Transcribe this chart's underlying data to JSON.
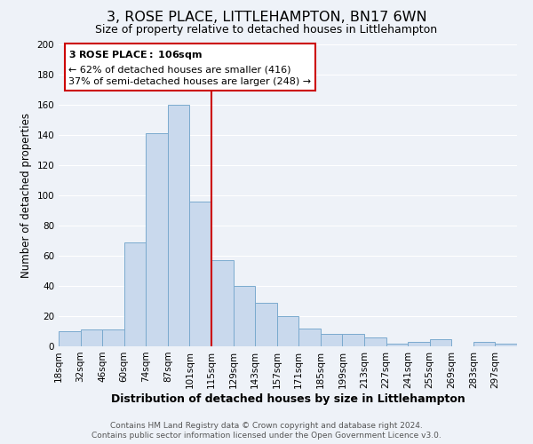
{
  "title": "3, ROSE PLACE, LITTLEHAMPTON, BN17 6WN",
  "subtitle": "Size of property relative to detached houses in Littlehampton",
  "xlabel": "Distribution of detached houses by size in Littlehampton",
  "ylabel": "Number of detached properties",
  "bin_labels": [
    "18sqm",
    "32sqm",
    "46sqm",
    "60sqm",
    "74sqm",
    "87sqm",
    "101sqm",
    "115sqm",
    "129sqm",
    "143sqm",
    "157sqm",
    "171sqm",
    "185sqm",
    "199sqm",
    "213sqm",
    "227sqm",
    "241sqm",
    "255sqm",
    "269sqm",
    "283sqm",
    "297sqm"
  ],
  "bar_heights": [
    10,
    11,
    11,
    69,
    141,
    160,
    96,
    57,
    40,
    29,
    20,
    12,
    8,
    8,
    6,
    2,
    3,
    5,
    0,
    3,
    2
  ],
  "bar_color": "#c9d9ed",
  "bar_edge_color": "#7aaace",
  "bar_width": 1.0,
  "vline_x": 7,
  "vline_color": "#cc0000",
  "vline_lw": 1.5,
  "ylim": [
    0,
    200
  ],
  "yticks": [
    0,
    20,
    40,
    60,
    80,
    100,
    120,
    140,
    160,
    180,
    200
  ],
  "annotation_title": "3 ROSE PLACE: 106sqm",
  "annotation_line1": "← 62% of detached houses are smaller (416)",
  "annotation_line2": "37% of semi-detached houses are larger (248) →",
  "annotation_box_color": "#ffffff",
  "annotation_box_edge": "#cc0000",
  "footer_line1": "Contains HM Land Registry data © Crown copyright and database right 2024.",
  "footer_line2": "Contains public sector information licensed under the Open Government Licence v3.0.",
  "background_color": "#eef2f8",
  "grid_color": "#ffffff",
  "title_fontsize": 11.5,
  "subtitle_fontsize": 9,
  "xlabel_fontsize": 9,
  "ylabel_fontsize": 8.5,
  "tick_fontsize": 7.5,
  "footer_fontsize": 6.5,
  "ann_fontsize": 8.0
}
